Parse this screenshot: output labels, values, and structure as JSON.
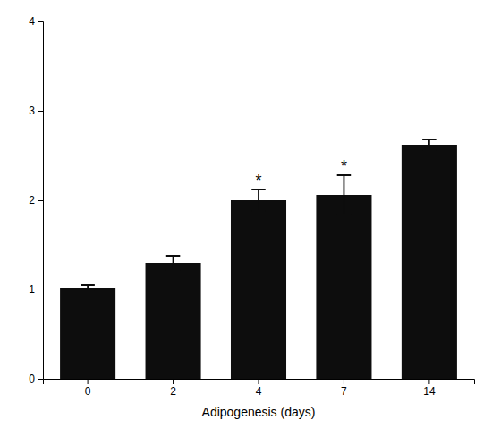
{
  "chart_data": {
    "type": "bar",
    "categories": [
      "0",
      "2",
      "4",
      "7",
      "14"
    ],
    "values": [
      1.02,
      1.3,
      2.0,
      2.06,
      2.62
    ],
    "errors": [
      0.03,
      0.08,
      0.12,
      0.22,
      0.06
    ],
    "color": "#0d0d0d",
    "xlabel": "Adipogenesis (days)",
    "ylim": [
      0,
      4
    ],
    "yticks": [
      0,
      1,
      2,
      3,
      4
    ],
    "annotations": [
      {
        "text": "*",
        "category": "4"
      },
      {
        "text": "*",
        "category": "7"
      }
    ],
    "grid": false
  }
}
